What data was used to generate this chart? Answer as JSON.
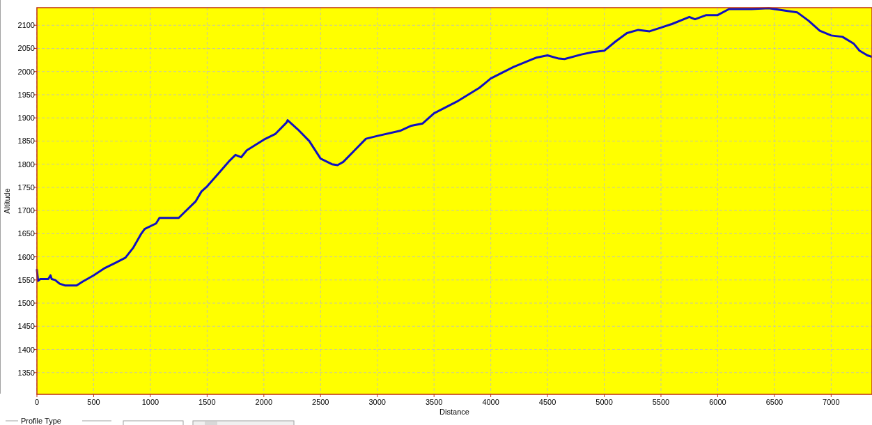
{
  "chart_data": {
    "type": "line",
    "xlabel": "Distance",
    "ylabel": "Altitude",
    "xlim": [
      0,
      7360
    ],
    "ylim": [
      1303,
      2138
    ],
    "xticks": [
      0,
      500,
      1000,
      1500,
      2000,
      2500,
      3000,
      3500,
      4000,
      4500,
      5000,
      5500,
      6000,
      6500,
      7000
    ],
    "yticks": [
      1350,
      1400,
      1450,
      1500,
      1550,
      1600,
      1650,
      1700,
      1750,
      1800,
      1850,
      1900,
      1950,
      2000,
      2050,
      2100
    ],
    "grid": true,
    "marker": "none",
    "line_style": "solid",
    "series": [
      {
        "color": "#1010c0",
        "x": [
          0,
          10,
          30,
          100,
          120,
          130,
          160,
          200,
          250,
          350,
          400,
          500,
          600,
          700,
          780,
          850,
          920,
          950,
          1050,
          1080,
          1250,
          1300,
          1400,
          1450,
          1500,
          1600,
          1700,
          1750,
          1800,
          1850,
          2000,
          2100,
          2200,
          2210,
          2300,
          2400,
          2500,
          2600,
          2650,
          2700,
          2800,
          2900,
          3000,
          3200,
          3300,
          3400,
          3500,
          3700,
          3900,
          3950,
          4000,
          4200,
          4400,
          4500,
          4600,
          4650,
          4800,
          4900,
          5000,
          5100,
          5200,
          5300,
          5400,
          5500,
          5600,
          5750,
          5800,
          5900,
          6000,
          6100,
          6300,
          6450,
          6500,
          6700,
          6800,
          6900,
          7000,
          7100,
          7200,
          7250,
          7320,
          7360
        ],
        "values": [
          1572,
          1548,
          1552,
          1552,
          1560,
          1552,
          1550,
          1542,
          1538,
          1538,
          1546,
          1560,
          1576,
          1588,
          1598,
          1620,
          1650,
          1660,
          1672,
          1684,
          1684,
          1696,
          1720,
          1741,
          1752,
          1780,
          1808,
          1820,
          1815,
          1830,
          1853,
          1865,
          1890,
          1895,
          1875,
          1850,
          1812,
          1800,
          1798,
          1805,
          1830,
          1855,
          1861,
          1872,
          1883,
          1888,
          1910,
          1935,
          1965,
          1975,
          1985,
          2010,
          2030,
          2035,
          2028,
          2027,
          2037,
          2042,
          2045,
          2065,
          2083,
          2090,
          2087,
          2095,
          2103,
          2118,
          2113,
          2122,
          2122,
          2135,
          2135,
          2137,
          2135,
          2128,
          2110,
          2088,
          2078,
          2075,
          2060,
          2045,
          2035,
          2032
        ]
      }
    ],
    "annotations": [
      "Profile Type"
    ]
  }
}
